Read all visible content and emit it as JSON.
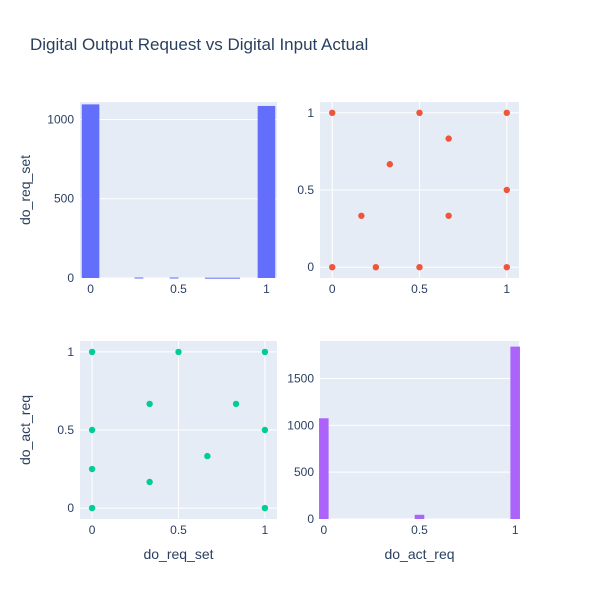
{
  "title": "Digital Output Request vs Digital Input Actual",
  "colors": {
    "page_bg": "#ffffff",
    "plot_bg": "#e5ecf6",
    "grid": "#ffffff",
    "text": "#2a3f5f",
    "hist_1": "#636efa",
    "scatter_1": "#ef553b",
    "scatter_2": "#00cc96",
    "hist_2": "#ab63fa"
  },
  "chart_data": [
    {
      "id": "hist-do-req-set",
      "type": "bar",
      "xlabel": "",
      "ylabel": "do_req_set",
      "xlim": [
        -0.06,
        1.06
      ],
      "ylim": [
        0,
        1110
      ],
      "xticks": [
        0,
        0.5,
        1
      ],
      "yticks": [
        0,
        500,
        1000
      ],
      "bin_width": 0.1,
      "bins": [
        {
          "x0": -0.05,
          "x1": 0.05,
          "value": 1095
        },
        {
          "x0": 0.25,
          "x1": 0.3,
          "value": 3
        },
        {
          "x0": 0.45,
          "x1": 0.5,
          "value": 3
        },
        {
          "x0": 0.65,
          "x1": 0.85,
          "value": 2
        },
        {
          "x0": 0.95,
          "x1": 1.05,
          "value": 1085
        }
      ]
    },
    {
      "id": "scatter-req-set-vs-act-req",
      "type": "scatter",
      "xlabel": "",
      "ylabel": "",
      "xlim": [
        -0.07,
        1.07
      ],
      "ylim": [
        -0.07,
        1.07
      ],
      "xticks": [
        0,
        0.5,
        1
      ],
      "yticks": [
        0,
        0.5,
        1
      ],
      "points": [
        [
          0,
          1
        ],
        [
          0.5,
          1
        ],
        [
          1,
          1
        ],
        [
          0.33,
          0.667
        ],
        [
          0.667,
          0.833
        ],
        [
          1,
          0.5
        ],
        [
          0.167,
          0.333
        ],
        [
          0.667,
          0.333
        ],
        [
          0,
          0
        ],
        [
          0.25,
          0
        ],
        [
          0.5,
          0
        ],
        [
          1,
          0
        ]
      ]
    },
    {
      "id": "scatter-act-req-vs-req-set",
      "type": "scatter",
      "xlabel": "do_req_set",
      "ylabel": "do_act_req",
      "xlim": [
        -0.07,
        1.07
      ],
      "ylim": [
        -0.07,
        1.07
      ],
      "xticks": [
        0,
        0.5,
        1
      ],
      "yticks": [
        0,
        0.5,
        1
      ],
      "points": [
        [
          0,
          1
        ],
        [
          0.5,
          1
        ],
        [
          1,
          1
        ],
        [
          0.333,
          0.667
        ],
        [
          0.833,
          0.667
        ],
        [
          0,
          0.5
        ],
        [
          1,
          0.5
        ],
        [
          0.667,
          0.333
        ],
        [
          0,
          0.25
        ],
        [
          0.333,
          0.167
        ],
        [
          0,
          0
        ],
        [
          1,
          0
        ]
      ]
    },
    {
      "id": "hist-do-act-req",
      "type": "bar",
      "xlabel": "do_act_req",
      "ylabel": "",
      "xlim": [
        -0.02,
        1.02
      ],
      "ylim": [
        0,
        1900
      ],
      "xticks": [
        0,
        0.5,
        1
      ],
      "yticks": [
        0,
        500,
        1000,
        1500
      ],
      "bin_width": 0.05,
      "bins": [
        {
          "x0": -0.025,
          "x1": 0.025,
          "value": 1075
        },
        {
          "x0": 0.475,
          "x1": 0.525,
          "value": 45
        },
        {
          "x0": 0.975,
          "x1": 1.025,
          "value": 1840
        }
      ]
    }
  ]
}
